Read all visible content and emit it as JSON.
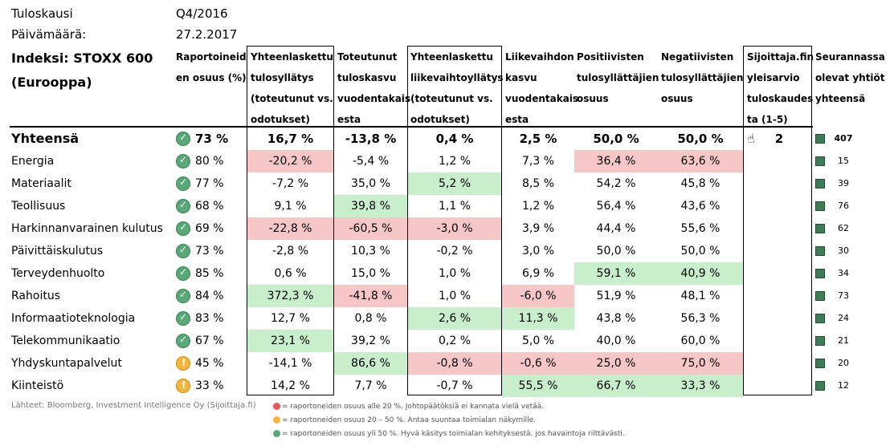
{
  "meta": {
    "period_label": "Tuloskausi",
    "period_value": "Q4/2016",
    "date_label": "Päivämäärä:",
    "date_value": "27.2.2017",
    "index_label": "Indeksi: STOXX 600\n(Eurooppa)"
  },
  "headers": [
    "Raportoineid\nen osuus (%)",
    "Yhteenlaskettu\ntulosyllätys\n(toteutunut vs.\nodotukset)",
    "Toteutunut\ntuloskasvu\nvuodentakais\nesta",
    "Yhteenlaskettu\nliikevaihtoyllätys\n(toteutunut vs.\nodotukset)",
    "Liikevaihdon\nkasvu\nvuodentakais\nesta",
    "Positiivisten\ntulosyllättäjien\nosuus",
    "Negatiivisten\ntulosyllättäjien\nosuus",
    "Sijoittaja.fin\nyleisarvio\ntuloskaudes\nta (1-5)",
    "Seurannassa\nolevat yhtiöt\nyhteensä"
  ],
  "rows": [
    {
      "name": "Yhteensä",
      "status": "ok",
      "pct": "73 %",
      "c1": "16,7 %",
      "c2": "-13,8 %",
      "c3": "0,4 %",
      "c4": "2,5 %",
      "c5": "50,0 %",
      "c6": "50,0 %",
      "rating": "2",
      "count": "407"
    },
    {
      "name": "Energia",
      "status": "ok",
      "pct": "80 %",
      "c1": "-20,2 %",
      "c2": "-5,4 %",
      "c3": "1,2 %",
      "c4": "7,3 %",
      "c5": "36,4 %",
      "c6": "63,6 %",
      "count": "15"
    },
    {
      "name": "Materiaalit",
      "status": "ok",
      "pct": "77 %",
      "c1": "-7,2 %",
      "c2": "35,0 %",
      "c3": "5,2 %",
      "c4": "8,5 %",
      "c5": "54,2 %",
      "c6": "45,8 %",
      "count": "39"
    },
    {
      "name": "Teollisuus",
      "status": "ok",
      "pct": "68 %",
      "c1": "9,1 %",
      "c2": "39,8 %",
      "c3": "1,1 %",
      "c4": "1,2 %",
      "c5": "56,4 %",
      "c6": "43,6 %",
      "count": "76"
    },
    {
      "name": "Harkinnanvarainen kulutus",
      "status": "ok",
      "pct": "69 %",
      "c1": "-22,8 %",
      "c2": "-60,5 %",
      "c3": "-3,0 %",
      "c4": "3,9 %",
      "c5": "44,4 %",
      "c6": "55,6 %",
      "count": "62"
    },
    {
      "name": "Päivittäiskulutus",
      "status": "ok",
      "pct": "73 %",
      "c1": "-2,8 %",
      "c2": "10,3 %",
      "c3": "-0,2 %",
      "c4": "3,0 %",
      "c5": "50,0 %",
      "c6": "50,0 %",
      "count": "30"
    },
    {
      "name": "Terveydenhuolto",
      "status": "ok",
      "pct": "85 %",
      "c1": "0,6 %",
      "c2": "15,0 %",
      "c3": "1,0 %",
      "c4": "6,9 %",
      "c5": "59,1 %",
      "c6": "40,9 %",
      "count": "34"
    },
    {
      "name": "Rahoitus",
      "status": "ok",
      "pct": "84 %",
      "c1": "372,3 %",
      "c2": "-41,8 %",
      "c3": "1,0 %",
      "c4": "-6,0 %",
      "c5": "51,9 %",
      "c6": "48,1 %",
      "count": "73"
    },
    {
      "name": "Informaatioteknologia",
      "status": "ok",
      "pct": "83 %",
      "c1": "12,7 %",
      "c2": "0,8 %",
      "c3": "2,6 %",
      "c4": "11,3 %",
      "c5": "43,8 %",
      "c6": "56,3 %",
      "count": "24"
    },
    {
      "name": "Telekommunikaatio",
      "status": "ok",
      "pct": "67 %",
      "c1": "23,1 %",
      "c2": "39,2 %",
      "c3": "0,2 %",
      "c4": "5,0 %",
      "c5": "40,0 %",
      "c6": "60,0 %",
      "count": "21"
    },
    {
      "name": "Yhdyskuntapalvelut",
      "status": "warn",
      "pct": "45 %",
      "c1": "-14,1 %",
      "c2": "86,6 %",
      "c3": "-0,8 %",
      "c4": "-0,6 %",
      "c5": "25,0 %",
      "c6": "75,0 %",
      "count": "20"
    },
    {
      "name": "Kiinteistö",
      "status": "warn",
      "pct": "33 %",
      "c1": "14,2 %",
      "c2": "7,7 %",
      "c3": "-0,7 %",
      "c4": "55,5 %",
      "c5": "66,7 %",
      "c6": "33,3 %",
      "count": "12"
    }
  ],
  "highlights": {
    "colors": {
      "red": "#f7c7c8",
      "green": "#c8eecb"
    },
    "cells": {
      "1": {
        "c1": "red",
        "c5": "red",
        "c6": "red"
      },
      "2": {
        "c3": "green"
      },
      "3": {
        "c2": "green"
      },
      "4": {
        "c1": "red",
        "c2": "red",
        "c3": "red"
      },
      "6": {
        "c5": "green",
        "c6": "green"
      },
      "7": {
        "c1": "green",
        "c2": "red",
        "c4": "red"
      },
      "8": {
        "c3": "green",
        "c4": "green"
      },
      "9": {
        "c1": "green"
      },
      "10": {
        "c2": "green",
        "c3": "red",
        "c4": "red",
        "c5": "red",
        "c6": "red"
      },
      "11": {
        "c4": "green",
        "c5": "green",
        "c6": "green"
      }
    }
  },
  "footer": {
    "source": "Lähteet: Bloomberg, Investment Intelligence Oy (Sijoittaja.fi)",
    "legend_red": "= raportoneiden osuus alle 20 %. Johtopäätöksiä ei kannata vielä vetää.",
    "legend_yellow": "= raportoneiden osuus 20 – 50 %. Antaa suuntaa toimialan näkymille.",
    "legend_green": "= raportoneiden osuus yli 50 %. Hyvä käsitys toimialan kehityksestä, jos havaintoja riittävästi."
  }
}
